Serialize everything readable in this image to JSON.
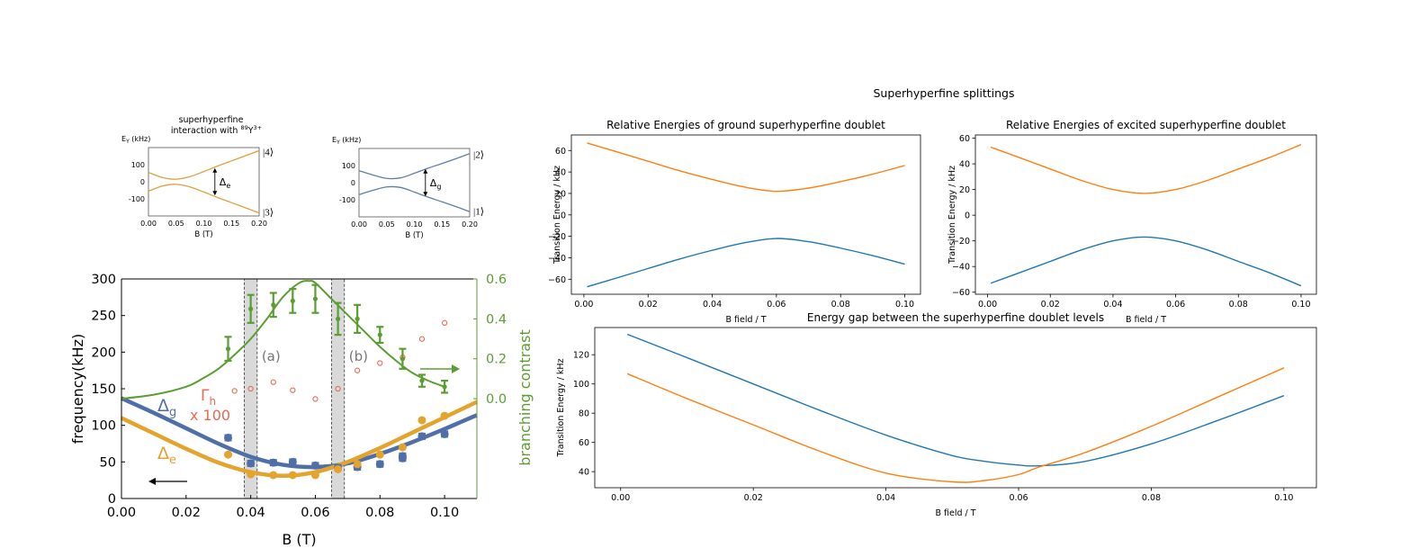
{
  "suptitle": "Superhyperfine splittings",
  "colors": {
    "mpl_blue": "#1f77b4",
    "mpl_orange": "#ff7f0e",
    "paper_blue": "#4f6fa8",
    "paper_orange": "#e3a32d",
    "paper_green": "#5a9e32",
    "paper_red": "#e86a52",
    "band_fill": "#d9d9d9",
    "inset_orange": "#e0a040",
    "inset_blue": "#5f7fa8"
  },
  "chart_data": [
    {
      "id": "inset-excited",
      "type": "line",
      "title_line1": "superhyperfine",
      "title_line2": "interaction with",
      "title_isotope_mass": "89",
      "title_isotope_symbol": "Y",
      "title_isotope_charge": "3+",
      "ylabel": "E",
      "ylabel_sub": "Y",
      "ylabel_unit": " (kHz)",
      "xlabel": "B (T)",
      "xlim": [
        0,
        0.2
      ],
      "ylim": [
        -200,
        200
      ],
      "xticks": [
        "0.00",
        "0.05",
        "0.10",
        "0.15",
        "0.20"
      ],
      "yticks": [
        {
          "v": 100,
          "label": "100"
        },
        {
          "v": 0,
          "label": "0"
        },
        {
          "v": -100,
          "label": "-100"
        }
      ],
      "x": [
        0,
        0.025,
        0.05,
        0.075,
        0.1,
        0.125,
        0.15,
        0.175,
        0.2
      ],
      "series": [
        {
          "values": [
            55,
            25,
            15,
            30,
            60,
            92,
            122,
            152,
            182
          ]
        },
        {
          "values": [
            -55,
            -25,
            -15,
            -30,
            -60,
            -92,
            -122,
            -152,
            -182
          ]
        }
      ],
      "gap_label": "Δ",
      "gap_label_sub": "e",
      "gap_x": 0.12,
      "gap_range": [
        -80,
        80
      ],
      "state_upper": "|4⟩",
      "state_lower": "|3⟩"
    },
    {
      "id": "inset-ground",
      "type": "line",
      "ylabel": "E",
      "ylabel_sub": "Y",
      "ylabel_unit": " (kHz)",
      "xlabel": "B (T)",
      "xlim": [
        0,
        0.2
      ],
      "ylim": [
        -200,
        200
      ],
      "xticks": [
        "0.00",
        "0.05",
        "0.10",
        "0.15",
        "0.20"
      ],
      "yticks": [
        {
          "v": 100,
          "label": "100"
        },
        {
          "v": 0,
          "label": "0"
        },
        {
          "v": -100,
          "label": "-100"
        }
      ],
      "x": [
        0,
        0.025,
        0.05,
        0.075,
        0.1,
        0.125,
        0.15,
        0.175,
        0.2
      ],
      "series": [
        {
          "values": [
            70,
            45,
            25,
            28,
            55,
            85,
            112,
            140,
            170
          ]
        },
        {
          "values": [
            -70,
            -45,
            -25,
            -28,
            -55,
            -85,
            -112,
            -140,
            -170
          ]
        }
      ],
      "gap_label": "Δ",
      "gap_label_sub": "g",
      "gap_x": 0.12,
      "gap_range": [
        -80,
        80
      ],
      "state_upper": "|2⟩",
      "state_lower": "|1⟩"
    },
    {
      "id": "paper-main",
      "type": "scatter",
      "ylabel": "frequency(kHz)",
      "xlabel": "B (T)",
      "ylabel_right": "branching contrast",
      "xlim": [
        0,
        0.11
      ],
      "ylim": [
        0,
        300
      ],
      "ylim_right": [
        -0.5,
        0.6
      ],
      "xticks": [
        0,
        0.02,
        0.04,
        0.06,
        0.08,
        0.1
      ],
      "xtick_labels": [
        "0.00",
        "0.02",
        "0.04",
        "0.06",
        "0.08",
        "0.10"
      ],
      "yticks": [
        0,
        50,
        100,
        150,
        200,
        250,
        300
      ],
      "ytick_labels": [
        "0",
        "50",
        "100",
        "150",
        "200",
        "250",
        "300"
      ],
      "yticks_right": [
        0,
        0.2,
        0.4,
        0.6
      ],
      "ytick_labels_right": [
        "0.0",
        "0.2",
        "0.4",
        "0.6"
      ],
      "bands": [
        {
          "x0": 0.038,
          "x1": 0.042,
          "label": "(a)"
        },
        {
          "x0": 0.065,
          "x1": 0.069,
          "label": "(b)"
        }
      ],
      "label_delta_g": "Δ",
      "label_delta_g_sub": "g",
      "label_delta_e": "Δ",
      "label_delta_e_sub": "e",
      "label_gamma": "Γ",
      "label_gamma_sub": "h",
      "label_gamma_scale": "x 100",
      "fit_x": [
        0,
        0.01,
        0.02,
        0.03,
        0.04,
        0.05,
        0.06,
        0.07,
        0.08,
        0.09,
        0.1,
        0.11
      ],
      "fit_delta_g": [
        137,
        117,
        96,
        75,
        57,
        46,
        43,
        48,
        61,
        77,
        95,
        114
      ],
      "fit_delta_e": [
        110,
        89,
        68,
        49,
        36,
        31,
        36,
        50,
        69,
        90,
        111,
        132
      ],
      "delta_g_x": [
        0.033,
        0.04,
        0.047,
        0.053,
        0.06,
        0.067,
        0.073,
        0.08,
        0.087,
        0.087,
        0.093,
        0.1
      ],
      "delta_g_y": [
        83,
        48,
        49,
        50,
        45,
        42,
        43,
        47,
        55,
        58,
        85,
        88
      ],
      "delta_e_x": [
        0.033,
        0.04,
        0.047,
        0.053,
        0.06,
        0.067,
        0.073,
        0.08,
        0.087,
        0.093,
        0.1
      ],
      "delta_e_y": [
        60,
        33,
        32,
        32,
        32,
        40,
        47,
        60,
        70,
        107,
        113
      ],
      "gamma_x": [
        0.035,
        0.04,
        0.047,
        0.053,
        0.06,
        0.067,
        0.073,
        0.08,
        0.087,
        0.093,
        0.1
      ],
      "gamma_y": [
        147,
        150,
        159,
        148,
        136,
        150,
        175,
        185,
        193,
        218,
        240
      ],
      "contrast_x": [
        0.033,
        0.04,
        0.047,
        0.053,
        0.06,
        0.067,
        0.073,
        0.08,
        0.087,
        0.093,
        0.1
      ],
      "contrast_y": [
        0.25,
        0.45,
        0.47,
        0.49,
        0.5,
        0.4,
        0.4,
        0.32,
        0.2,
        0.09,
        0.06
      ],
      "contrast_err": [
        0.06,
        0.07,
        0.06,
        0.06,
        0.07,
        0.08,
        0.07,
        0.04,
        0.05,
        0.03,
        0.03
      ],
      "contrast_fit_x": [
        0,
        0.01,
        0.02,
        0.025,
        0.03,
        0.035,
        0.04,
        0.045,
        0.05,
        0.055,
        0.058,
        0.06,
        0.065,
        0.07,
        0.075,
        0.08,
        0.085,
        0.09,
        0.095,
        0.1
      ],
      "contrast_fit_y": [
        0.0,
        0.02,
        0.06,
        0.1,
        0.15,
        0.22,
        0.3,
        0.4,
        0.51,
        0.58,
        0.59,
        0.58,
        0.5,
        0.42,
        0.34,
        0.26,
        0.19,
        0.13,
        0.09,
        0.06
      ]
    },
    {
      "id": "ground-doublet",
      "type": "line",
      "title": "Relative Energies of ground superhyperfine doublet",
      "xlabel": "B field / T",
      "ylabel": "Transition Energy / kHz",
      "xlim": [
        -0.0039,
        0.1049
      ],
      "ylim": [
        -74,
        74.5
      ],
      "xticks": [
        0,
        0.02,
        0.04,
        0.06,
        0.08,
        0.1
      ],
      "xtick_labels": [
        "0.00",
        "0.02",
        "0.04",
        "0.06",
        "0.08",
        "0.10"
      ],
      "yticks": [
        60,
        40,
        20,
        0,
        -20,
        -40,
        -60
      ],
      "ytick_labels": [
        "60",
        "40",
        "20",
        "0",
        "−20",
        "−40",
        "−60"
      ],
      "x": [
        0.001,
        0.01,
        0.02,
        0.03,
        0.04,
        0.05,
        0.06,
        0.07,
        0.08,
        0.09,
        0.1
      ],
      "series": [
        {
          "color": "#ff7f0e",
          "values": [
            67,
            59,
            50,
            41,
            33,
            26,
            22,
            25,
            31,
            38,
            46
          ]
        },
        {
          "color": "#1f77b4",
          "values": [
            -67,
            -59,
            -50,
            -41,
            -33,
            -26,
            -22,
            -25,
            -31,
            -38,
            -46
          ]
        }
      ]
    },
    {
      "id": "excited-doublet",
      "type": "line",
      "title": "Relative Energies of excited superhyperfine doublet",
      "xlabel": "B field / T",
      "ylabel": "Transition Energy / kHz",
      "xlim": [
        -0.0039,
        0.1049
      ],
      "ylim": [
        -61.6,
        62.5
      ],
      "xticks": [
        0,
        0.02,
        0.04,
        0.06,
        0.08,
        0.1
      ],
      "xtick_labels": [
        "0.00",
        "0.02",
        "0.04",
        "0.06",
        "0.08",
        "0.10"
      ],
      "yticks": [
        60,
        40,
        20,
        0,
        -20,
        -40,
        -60
      ],
      "ytick_labels": [
        "60",
        "40",
        "20",
        "0",
        "−20",
        "−40",
        "−60"
      ],
      "x": [
        0.001,
        0.01,
        0.02,
        0.03,
        0.04,
        0.05,
        0.06,
        0.07,
        0.08,
        0.09,
        0.1
      ],
      "series": [
        {
          "color": "#ff7f0e",
          "values": [
            53,
            45,
            36,
            27,
            20,
            17,
            20,
            27,
            36,
            45,
            55
          ]
        },
        {
          "color": "#1f77b4",
          "values": [
            -53,
            -45,
            -36,
            -27,
            -20,
            -17,
            -20,
            -27,
            -36,
            -45,
            -55
          ]
        }
      ]
    },
    {
      "id": "energy-gap",
      "type": "line",
      "title": "Energy gap between the superhyperfine doublet levels",
      "xlabel": "B field / T",
      "ylabel": "Transition Energy / kHz",
      "xlim": [
        -0.0039,
        0.1049
      ],
      "ylim": [
        29,
        138.6
      ],
      "xticks": [
        0,
        0.02,
        0.04,
        0.06,
        0.08,
        0.1
      ],
      "xtick_labels": [
        "0.00",
        "0.02",
        "0.04",
        "0.06",
        "0.08",
        "0.10"
      ],
      "yticks": [
        120,
        100,
        80,
        60,
        40
      ],
      "ytick_labels": [
        "120",
        "100",
        "80",
        "60",
        "40"
      ],
      "x": [
        0.001,
        0.01,
        0.02,
        0.03,
        0.04,
        0.05,
        0.055,
        0.06,
        0.063,
        0.07,
        0.08,
        0.09,
        0.1
      ],
      "series": [
        {
          "color": "#1f77b4",
          "values": [
            134,
            118,
            100,
            82,
            65,
            51,
            47,
            44.5,
            44,
            47,
            59,
            75,
            92
          ]
        },
        {
          "color": "#ff7f0e",
          "values": [
            107,
            90,
            72,
            54,
            39,
            33,
            34,
            38,
            43,
            53,
            71,
            91,
            111
          ]
        }
      ]
    }
  ]
}
